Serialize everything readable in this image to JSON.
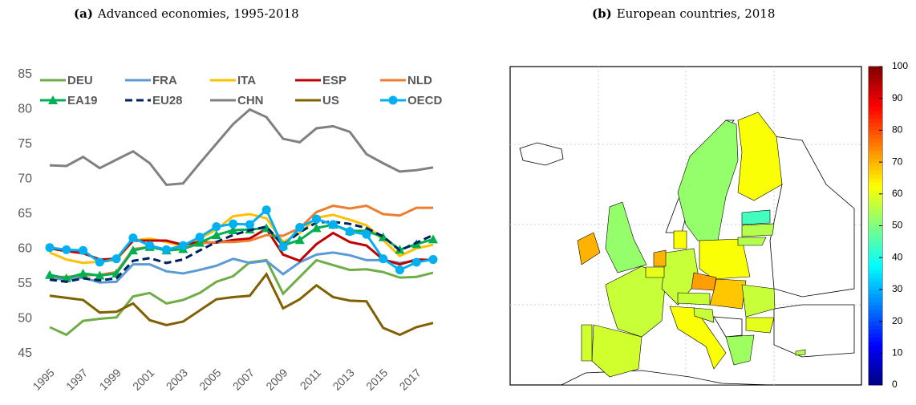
{
  "chart_data": [
    {
      "type": "line",
      "label": "(a)",
      "title": "Advanced economies, 1995-2018",
      "x": [
        1995,
        1996,
        1997,
        1998,
        1999,
        2000,
        2001,
        2002,
        2003,
        2004,
        2005,
        2006,
        2007,
        2008,
        2009,
        2010,
        2011,
        2012,
        2013,
        2014,
        2015,
        2016,
        2017,
        2018
      ],
      "xlim": [
        1995,
        2018
      ],
      "xticks": [
        1995,
        1997,
        1999,
        2001,
        2003,
        2005,
        2007,
        2009,
        2011,
        2013,
        2015,
        2017
      ],
      "ylim": [
        45,
        85
      ],
      "yticks": [
        45,
        50,
        55,
        60,
        65,
        70,
        75,
        80,
        85
      ],
      "series": [
        {
          "name": "DEU",
          "color": "#70ad47",
          "values": [
            48.8,
            47.7,
            49.7,
            50.0,
            50.2,
            53.2,
            53.7,
            52.2,
            52.7,
            53.7,
            55.3,
            56.1,
            58.1,
            58.4,
            53.6,
            56.0,
            58.4,
            57.7,
            57.0,
            57.1,
            56.7,
            55.9,
            56.0,
            56.6
          ]
        },
        {
          "name": "FRA",
          "color": "#5b9bd5",
          "values": [
            55.8,
            55.6,
            55.9,
            55.2,
            55.3,
            57.8,
            57.8,
            56.8,
            56.5,
            57.0,
            57.6,
            58.6,
            58.0,
            58.3,
            56.4,
            58.1,
            59.2,
            59.5,
            59.1,
            58.4,
            58.4,
            58.0,
            58.3,
            58.5
          ]
        },
        {
          "name": "ITA",
          "color": "#ffc000",
          "values": [
            59.5,
            58.5,
            58.0,
            58.2,
            58.4,
            61.2,
            61.5,
            61.0,
            60.4,
            61.5,
            62.8,
            64.7,
            65.0,
            64.4,
            61.0,
            62.3,
            64.5,
            64.9,
            64.2,
            63.4,
            61.3,
            59.0,
            60.1,
            60.6
          ]
        },
        {
          "name": "ESP",
          "color": "#c00000",
          "values": [
            60.1,
            59.7,
            59.4,
            58.5,
            58.6,
            61.2,
            61.2,
            61.2,
            60.6,
            61.0,
            60.9,
            61.3,
            61.5,
            62.9,
            59.2,
            58.3,
            60.7,
            62.3,
            61.0,
            60.5,
            58.5,
            57.8,
            58.5,
            58.4
          ]
        },
        {
          "name": "NLD",
          "color": "#ed7d31",
          "values": [
            56.0,
            56.0,
            56.2,
            56.3,
            56.7,
            60.0,
            60.3,
            59.8,
            60.0,
            60.8,
            61.0,
            61.0,
            61.2,
            62.0,
            61.9,
            63.0,
            65.3,
            66.2,
            65.8,
            66.2,
            65.0,
            64.8,
            65.9,
            65.9
          ]
        },
        {
          "name": "EA19",
          "color": "#00b050",
          "marker": "triangle",
          "values": [
            56.3,
            55.8,
            56.5,
            56.2,
            56.5,
            59.8,
            60.3,
            59.8,
            60.0,
            60.9,
            62.0,
            62.7,
            62.8,
            63.0,
            60.5,
            61.3,
            63.0,
            63.5,
            62.6,
            62.6,
            61.7,
            59.9,
            60.7,
            61.4
          ]
        },
        {
          "name": "EU28",
          "color": "#002060",
          "dash": true,
          "values": [
            55.6,
            55.3,
            55.8,
            55.5,
            55.8,
            58.3,
            58.7,
            58.0,
            58.5,
            59.8,
            61.0,
            62.0,
            62.7,
            63.2,
            60.6,
            62.4,
            63.8,
            63.9,
            63.6,
            63.0,
            61.8,
            59.8,
            60.9,
            62.0
          ]
        },
        {
          "name": "CHN",
          "color": "#808080",
          "values": [
            72.0,
            71.9,
            73.2,
            71.6,
            72.8,
            74.0,
            72.3,
            69.2,
            69.4,
            72.3,
            75.1,
            77.9,
            80.0,
            78.9,
            75.8,
            75.3,
            77.3,
            77.6,
            76.8,
            73.6,
            72.3,
            71.1,
            71.3,
            71.7
          ]
        },
        {
          "name": "US",
          "color": "#806000",
          "values": [
            53.3,
            53.0,
            52.7,
            50.9,
            51.0,
            52.2,
            49.8,
            49.1,
            49.6,
            51.2,
            52.8,
            53.1,
            53.3,
            56.4,
            51.5,
            52.8,
            54.8,
            53.1,
            52.6,
            52.5,
            48.7,
            47.7,
            48.8,
            49.4
          ]
        },
        {
          "name": "OECD",
          "color": "#00b0f0",
          "marker": "circle",
          "values": [
            60.2,
            59.9,
            59.8,
            58.1,
            58.6,
            61.6,
            60.5,
            59.9,
            60.5,
            61.7,
            63.2,
            63.6,
            63.5,
            65.6,
            60.3,
            63.1,
            64.3,
            63.5,
            62.5,
            62.1,
            58.6,
            57.0,
            58.1,
            58.5
          ]
        }
      ]
    },
    {
      "type": "map",
      "label": "(b)",
      "title": "European countries, 2018",
      "values": [
        52,
        62,
        52,
        70,
        58,
        58,
        57,
        57,
        70,
        60,
        62,
        62,
        72,
        68,
        57,
        62,
        57,
        60,
        53,
        44,
        55,
        55,
        57,
        55
      ],
      "clim": [
        0,
        100
      ],
      "colorbar_ticks": [
        0,
        10,
        20,
        30,
        40,
        50,
        60,
        70,
        80,
        90,
        100
      ]
    }
  ]
}
